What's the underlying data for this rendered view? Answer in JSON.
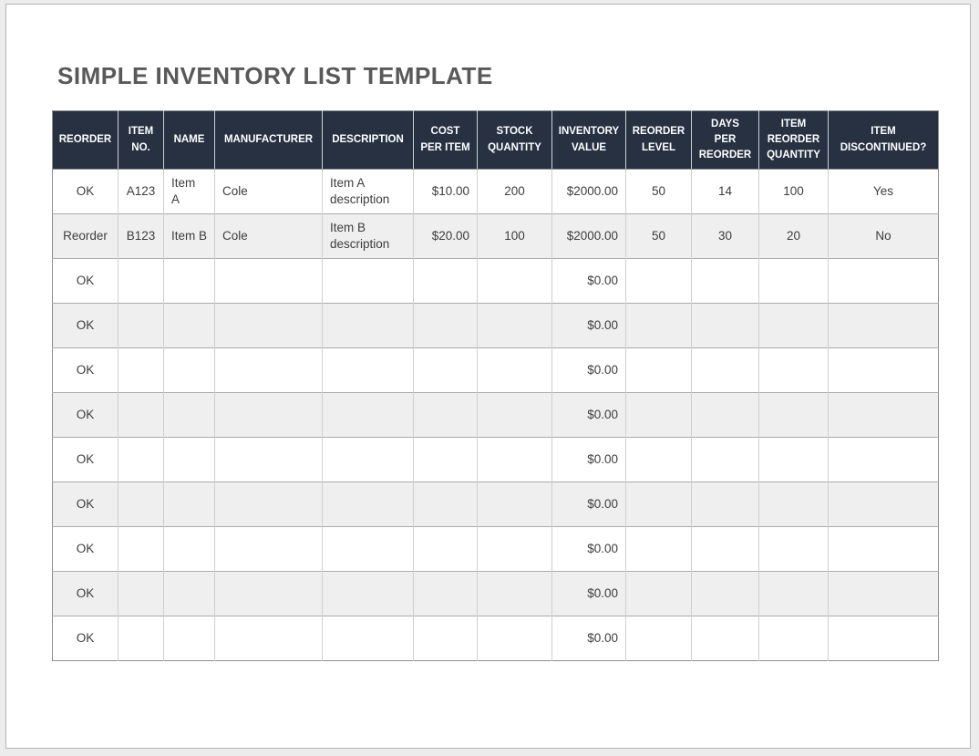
{
  "title": "SIMPLE INVENTORY LIST TEMPLATE",
  "colors": {
    "header_bg": "#273142",
    "header_text": "#ffffff",
    "row_alt_bg": "#efefef",
    "title_text": "#595959",
    "body_text": "#3d3d3d"
  },
  "table": {
    "columns": [
      {
        "key": "reorder",
        "label": "REORDER",
        "align": "center",
        "width": 72
      },
      {
        "key": "item-no",
        "label": "ITEM\nNO.",
        "align": "center",
        "width": 50
      },
      {
        "key": "name",
        "label": "NAME",
        "align": "left",
        "width": 56
      },
      {
        "key": "manufacturer",
        "label": "MANUFACTURER",
        "align": "left",
        "width": 118
      },
      {
        "key": "description",
        "label": "DESCRIPTION",
        "align": "left",
        "width": 100
      },
      {
        "key": "cost-per-item",
        "label": "COST\nPER ITEM",
        "align": "right",
        "width": 70
      },
      {
        "key": "stock-quantity",
        "label": "STOCK\nQUANTITY",
        "align": "center",
        "width": 82
      },
      {
        "key": "inventory-value",
        "label": "INVENTORY\nVALUE",
        "align": "right",
        "width": 81
      },
      {
        "key": "reorder-level",
        "label": "REORDER\nLEVEL",
        "align": "center",
        "width": 72
      },
      {
        "key": "days-per-reorder",
        "label": "DAYS\nPER\nREORDER",
        "align": "center",
        "width": 74
      },
      {
        "key": "item-reorder-quantity",
        "label": "ITEM\nREORDER\nQUANTITY",
        "align": "center",
        "width": 76
      },
      {
        "key": "item-discontinued",
        "label": "ITEM\nDISCONTINUED?",
        "align": "center",
        "width": 121
      }
    ],
    "rows": [
      [
        "OK",
        "A123",
        "Item\nA",
        "Cole",
        "Item A description",
        "$10.00",
        "200",
        "$2000.00",
        "50",
        "14",
        "100",
        "Yes"
      ],
      [
        "Reorder",
        "B123",
        "Item B",
        "Cole",
        "Item B description",
        "$20.00",
        "100",
        "$2000.00",
        "50",
        "30",
        "20",
        "No"
      ],
      [
        "OK",
        "",
        "",
        "",
        "",
        "",
        "",
        "$0.00",
        "",
        "",
        "",
        ""
      ],
      [
        "OK",
        "",
        "",
        "",
        "",
        "",
        "",
        "$0.00",
        "",
        "",
        "",
        ""
      ],
      [
        "OK",
        "",
        "",
        "",
        "",
        "",
        "",
        "$0.00",
        "",
        "",
        "",
        ""
      ],
      [
        "OK",
        "",
        "",
        "",
        "",
        "",
        "",
        "$0.00",
        "",
        "",
        "",
        ""
      ],
      [
        "OK",
        "",
        "",
        "",
        "",
        "",
        "",
        "$0.00",
        "",
        "",
        "",
        ""
      ],
      [
        "OK",
        "",
        "",
        "",
        "",
        "",
        "",
        "$0.00",
        "",
        "",
        "",
        ""
      ],
      [
        "OK",
        "",
        "",
        "",
        "",
        "",
        "",
        "$0.00",
        "",
        "",
        "",
        ""
      ],
      [
        "OK",
        "",
        "",
        "",
        "",
        "",
        "",
        "$0.00",
        "",
        "",
        "",
        ""
      ],
      [
        "OK",
        "",
        "",
        "",
        "",
        "",
        "",
        "$0.00",
        "",
        "",
        "",
        ""
      ]
    ]
  }
}
